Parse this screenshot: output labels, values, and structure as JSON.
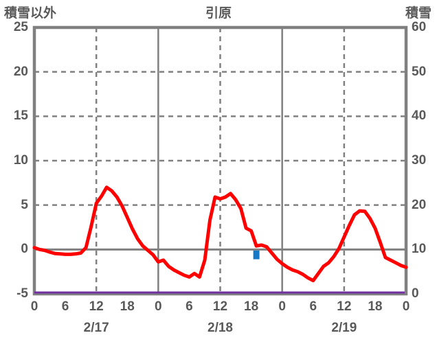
{
  "header": {
    "left_axis_title": "積雪以外",
    "station_title": "引原",
    "right_axis_title": "積雪"
  },
  "chart_data": {
    "type": "line",
    "title": "引原",
    "left_axis": {
      "label": "積雪以外",
      "min": -5,
      "max": 25,
      "ticks": [
        25,
        20,
        15,
        10,
        5,
        0,
        -5
      ]
    },
    "right_axis": {
      "label": "積雪",
      "min": 0,
      "max": 60,
      "ticks": [
        60,
        50,
        40,
        30,
        20,
        10,
        0
      ]
    },
    "x_axis": {
      "hours_total": 72,
      "tick_step_hours": 6,
      "hour_tick_labels": [
        "0",
        "6",
        "12",
        "18",
        "0",
        "6",
        "12",
        "18",
        "0",
        "6",
        "12",
        "18",
        "0"
      ],
      "date_labels": [
        "2/17",
        "2/18",
        "2/19"
      ]
    },
    "gridlines": {
      "color": "#808080",
      "h_dashed_values": [
        20,
        15,
        10,
        5
      ],
      "h_solid_values": [
        0
      ],
      "v_dashed_hours": [
        12,
        36,
        60
      ],
      "v_solid_hours": [
        24,
        48
      ]
    },
    "series": [
      {
        "name": "temperature",
        "type": "line",
        "color": "#ff0000",
        "axis": "left",
        "values_hourly": [
          0.2,
          0.0,
          -0.1,
          -0.3,
          -0.45,
          -0.5,
          -0.55,
          -0.55,
          -0.5,
          -0.4,
          0.2,
          2.6,
          5.2,
          6.0,
          7.0,
          6.6,
          5.9,
          4.9,
          3.6,
          2.3,
          1.2,
          0.4,
          -0.1,
          -0.6,
          -1.4,
          -1.2,
          -1.9,
          -2.3,
          -2.6,
          -2.9,
          -3.1,
          -2.7,
          -3.1,
          -1.2,
          3.3,
          5.9,
          5.7,
          5.9,
          6.3,
          5.6,
          4.6,
          2.4,
          2.1,
          0.4,
          0.5,
          0.3,
          -0.4,
          -1.1,
          -1.6,
          -2.0,
          -2.3,
          -2.5,
          -2.8,
          -3.2,
          -3.5,
          -2.7,
          -1.9,
          -1.5,
          -0.8,
          0.1,
          1.4,
          2.7,
          3.9,
          4.35,
          4.3,
          3.5,
          2.4,
          0.8,
          -0.9,
          -1.2,
          -1.5,
          -1.8,
          -2.0
        ]
      },
      {
        "name": "snow_depth",
        "type": "line",
        "color": "#7030a0",
        "axis": "right",
        "constant_value": 0
      },
      {
        "name": "precipitation",
        "type": "bar",
        "color": "#1878c8",
        "axis": "left",
        "bars": [
          {
            "hour": 43,
            "top": 0,
            "bottom": -1.1
          }
        ]
      }
    ],
    "plot_border_color": "#808080"
  }
}
